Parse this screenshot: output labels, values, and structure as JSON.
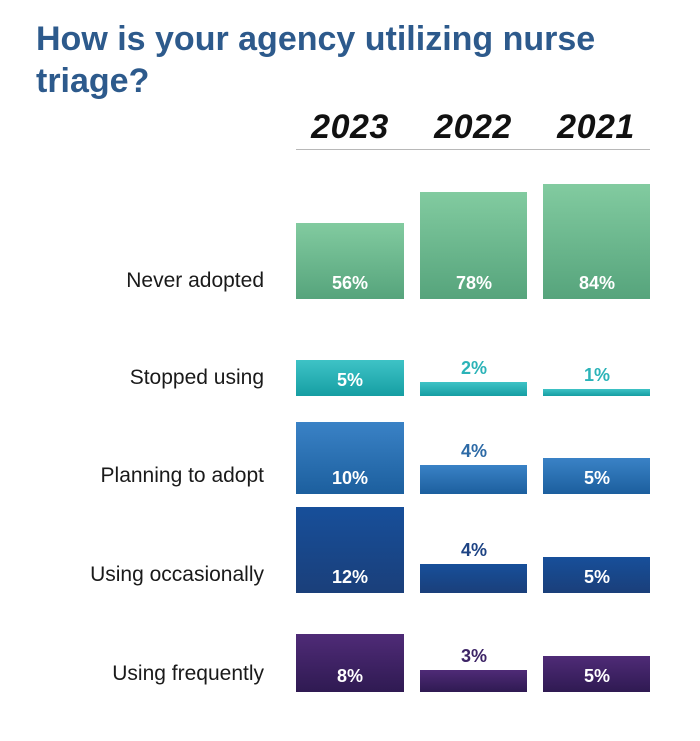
{
  "title": "How is your agency utilizing nurse triage?",
  "chart_data": {
    "type": "bar",
    "orientation": "grouped-columns-by-row",
    "title": "How is your agency utilizing nurse triage?",
    "series": [
      {
        "name": "2023",
        "values": [
          56,
          5,
          10,
          12,
          8
        ]
      },
      {
        "name": "2022",
        "values": [
          78,
          2,
          4,
          4,
          3
        ]
      },
      {
        "name": "2021",
        "values": [
          84,
          1,
          5,
          5,
          5
        ]
      }
    ],
    "categories": [
      "Never adopted",
      "Stopped using",
      "Planning to adopt",
      "Using occasionally",
      "Using frequently"
    ],
    "value_labels": [
      [
        "56%",
        "78%",
        "84%"
      ],
      [
        "5%",
        "2%",
        "1%"
      ],
      [
        "10%",
        "4%",
        "5%"
      ],
      [
        "12%",
        "4%",
        "5%"
      ],
      [
        "8%",
        "3%",
        "5%"
      ]
    ],
    "unit": "%",
    "row_colors": [
      {
        "top": "#82cba0",
        "bottom": "#56a47c",
        "label": "#ffffff"
      },
      {
        "top": "#3ec3c6",
        "bottom": "#169ea3",
        "label": "#2bb3b8"
      },
      {
        "top": "#3a82c6",
        "bottom": "#1c5f9e",
        "label": "#2d6aa6"
      },
      {
        "top": "#174f9a",
        "bottom": "#1a3f7a",
        "label": "#1d4384"
      },
      {
        "top": "#4f2b77",
        "bottom": "#2f1a52",
        "label": "#3d2466"
      }
    ]
  }
}
